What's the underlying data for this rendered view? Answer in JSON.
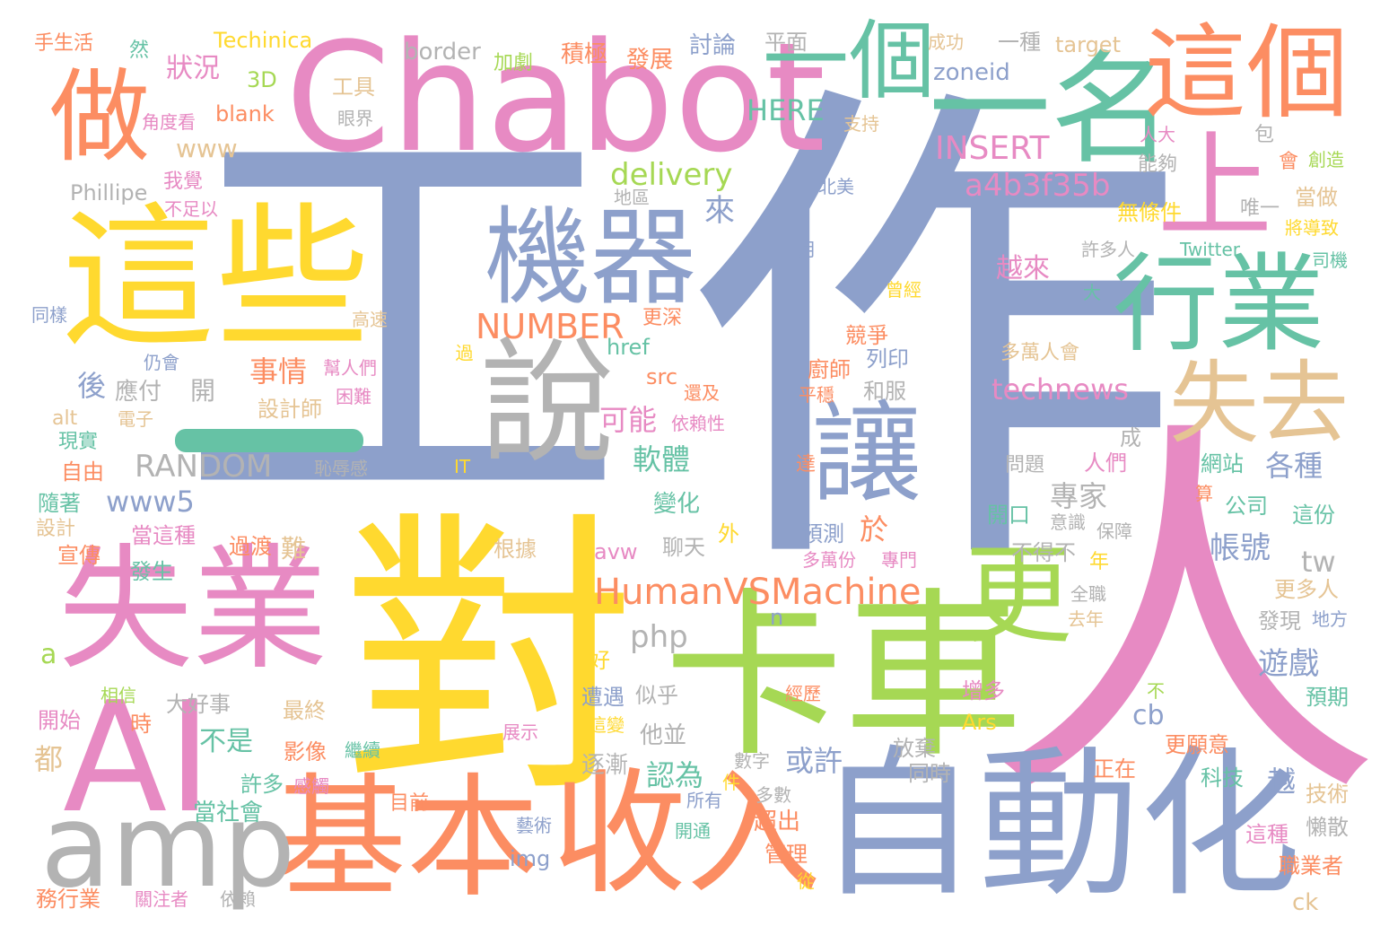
{
  "palette": {
    "blue": "#8da0cb",
    "yellow": "#ffd92f",
    "pink": "#e78ac3",
    "green": "#66c2a5",
    "orange": "#fc8d62",
    "lime": "#a6d854",
    "tan": "#e5c494",
    "gray": "#b3b3b3"
  },
  "words": {
    "gongzuo_gong": "工",
    "gongzuo_zuo": "作",
    "ren": "人",
    "dui": "對",
    "chabot": "Chabot",
    "zidonghua": "自動化",
    "kache": "卡車",
    "shiye": "失業",
    "zhexie": "這些",
    "jiben": "基本",
    "shouru": "收入",
    "ai": "AI",
    "amp": "amp",
    "jiqi": "機器",
    "shuo": "說",
    "rang": "讓",
    "yige": "一個",
    "yiming": "一名",
    "zhege": "這個",
    "zuo": "做",
    "shang": "上",
    "hangye": "行業",
    "shiqu": "失去",
    "geng": "更",
    "humanvsmachine": "HumanVSMachine",
    "number": "NUMBER",
    "random": "RANDOM",
    "insert": "INSERT",
    "delivery": "delivery",
    "technews": "technews",
    "a4b3f35b": "a4b3f35b",
    "www5": "www5",
    "www": "www",
    "here": "HERE",
    "zoneid": "zoneid",
    "border": "border",
    "techinica": "Techinica",
    "target": "target",
    "phillipe": "Phillipe",
    "twitter": "Twitter",
    "php": "php",
    "blank": "blank",
    "td": "3D",
    "href": "href",
    "src": "src",
    "alt": "alt",
    "it": "IT",
    "avw": "avw",
    "tw": "tw",
    "cb": "cb",
    "ck": "ck",
    "img": "img",
    "ars": "Ars",
    "n": "n",
    "a": "a",
    "zhuangkuang": "狀況",
    "shiqing": "事情",
    "keneng": "可能",
    "ruanti": "軟體",
    "zhuanjia": "專家",
    "zhanghao": "帳號",
    "youxi": "遊戲",
    "gezhong": "各種",
    "huoxu": "或許",
    "renwei": "認為",
    "bushi": "不是",
    "yuelai": "越來",
    "gongju": "工具",
    "jiaoduk": "角度看",
    "wojue": "我覺",
    "buzuyi": "不足以",
    "tonyang": "同樣",
    "gaosu": "高速",
    "bangrenmen": "幫人們",
    "kunnan": "困難",
    "shejishi": "設計師",
    "dianzi": "電子",
    "reng": "仍會",
    "guo": "過",
    "hou": "後",
    "yingfu": "應付",
    "kai": "開",
    "xianshi": "現實",
    "ziyou": "自由",
    "suizhe": "隨著",
    "sheji": "設計",
    "xuanchuan": "宣傳",
    "dangzhe": "當這種",
    "guodu": "過渡",
    "nan": "難",
    "fasheng": "發生",
    "chirugan": "恥辱感",
    "yanjie": "眼界",
    "jiaju": "加劇",
    "jiji": "積極",
    "fazhan": "發展",
    "taolun": "討論",
    "pingmian": "平面",
    "chenggong": "成功",
    "yizhong": "一種",
    "shousheng": "手生活",
    "ran": "然",
    "zhichi": "支持",
    "renda": "人大",
    "bao": "包",
    "hui": "會",
    "chuangzao": "創造",
    "nenggou": "能夠",
    "dangzuo": "當做",
    "wutiaojian": "無條件",
    "weiyi": "唯一",
    "jiangdaozhi": "將導致",
    "siji": "司機",
    "diqu": "地區",
    "beimei": "北美",
    "lai": "來",
    "yue": "月",
    "xurenren": "許多人",
    "cengjing": "曾經",
    "da": "大",
    "gengshen": "更深",
    "jingzheng": "競爭",
    "chushi": "廚師",
    "liyin": "列印",
    "pingwen": "平穩",
    "hefu": "和服",
    "huanji": "還及",
    "yilaixing": "依賴性",
    "duowanren": "多萬人會",
    "wenti": "問題",
    "renmen": "人們",
    "cheng": "成",
    "wangzhan": "網站",
    "suan": "算",
    "gongsi": "公司",
    "zhefen": "這份",
    "kaikou": "開口",
    "yishi": "意識",
    "baozhang": "保障",
    "budebu": "不得不",
    "nian": "年",
    "bianhua": "變化",
    "wai": "外",
    "liaotian": "聊天",
    "yuce": "預測",
    "yu": "於",
    "duowanfen": "多萬份",
    "zhuanmen": "專門",
    "genju": "根據",
    "da2": "達",
    "quanzhi": "全職",
    "qunian": "去年",
    "gengduoren": "更多人",
    "faxian": "發現",
    "difang": "地方",
    "hao": "好",
    "zaoyu": "遭遇",
    "sihu": "似乎",
    "jingli": "經歷",
    "zengduo": "增多",
    "bu": "不",
    "yuqi": "預期",
    "xiangxin": "相信",
    "dahaoshi": "大好事",
    "kaishi": "開始",
    "shi": "時",
    "zuizhong": "最終",
    "zhanshi": "展示",
    "zhebian": "這變",
    "tabing": "他並",
    "gengyuanyi": "更願意",
    "dou": "都",
    "yingxiang": "影像",
    "jixu": "繼續",
    "zhujian": "逐漸",
    "shuzi": "數字",
    "fangqi": "放棄",
    "tongshi": "同時",
    "zhengzai": "正在",
    "keji": "科技",
    "jishu": "技術",
    "yue2": "越",
    "xuduo": "許多",
    "ganchu": "感觸",
    "jian": "件",
    "suoyou": "所有",
    "duoshu": "多數",
    "dangshehui": "當社會",
    "mubian": "目前",
    "chaochu": "超出",
    "yishu": "藝術",
    "kaitong": "開通",
    "guanli": "管理",
    "cong": "從",
    "zhezhong": "這種",
    "lansan": "懶散",
    "zhiyezhe": "職業者",
    "wuhangye": "務行業",
    "guanzhuzhe": "關注者",
    "yilai": "依賴"
  }
}
